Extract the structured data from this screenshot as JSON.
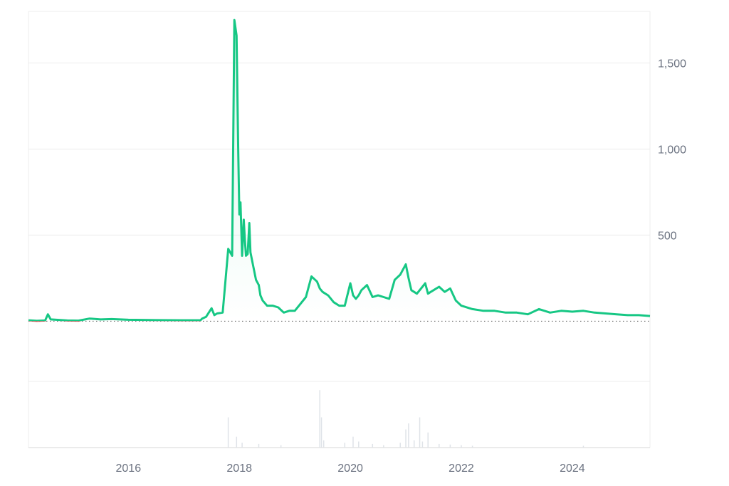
{
  "chart_data": {
    "type": "line",
    "title": "",
    "xlabel": "",
    "ylabel": "",
    "xlim": [
      2014.2,
      2025.4
    ],
    "ylim": [
      -350,
      1800
    ],
    "baseline": 0,
    "y_ticks": [
      500,
      1000,
      1500
    ],
    "y_tick_labels": [
      "500",
      "1,000",
      "1,500"
    ],
    "x_ticks": [
      2016,
      2018,
      2020,
      2022,
      2024
    ],
    "x_tick_labels": [
      "2016",
      "2018",
      "2020",
      "2022",
      "2024"
    ],
    "grid": "horizontal",
    "colors": {
      "up": "#16c784",
      "down": "#ea3943",
      "area": "#16c784",
      "grid": "#ececec",
      "volume": "#dfe3e8"
    },
    "series": [
      {
        "x": [
          2014.2,
          2014.35,
          2014.5,
          2014.55,
          2014.6,
          2014.7,
          2014.9,
          2015.1,
          2015.3,
          2015.5,
          2015.7,
          2016.0,
          2016.5,
          2017.0,
          2017.3,
          2017.33,
          2017.4,
          2017.5,
          2017.55,
          2017.6,
          2017.7,
          2017.8,
          2017.87,
          2017.91,
          2017.95,
          2017.98,
          2018.0,
          2018.02,
          2018.05,
          2018.08,
          2018.1,
          2018.12,
          2018.15,
          2018.18,
          2018.2,
          2018.25,
          2018.3,
          2018.35,
          2018.38,
          2018.42,
          2018.5,
          2018.6,
          2018.7,
          2018.8,
          2018.9,
          2019.0,
          2019.2,
          2019.3,
          2019.4,
          2019.45,
          2019.5,
          2019.6,
          2019.7,
          2019.8,
          2019.9,
          2020.0,
          2020.05,
          2020.1,
          2020.15,
          2020.2,
          2020.3,
          2020.4,
          2020.5,
          2020.6,
          2020.7,
          2020.8,
          2020.9,
          2021.0,
          2021.05,
          2021.1,
          2021.2,
          2021.3,
          2021.35,
          2021.4,
          2021.45,
          2021.5,
          2021.6,
          2021.7,
          2021.8,
          2021.9,
          2022.0,
          2022.2,
          2022.4,
          2022.6,
          2022.8,
          2023.0,
          2023.2,
          2023.4,
          2023.6,
          2023.8,
          2024.0,
          2024.2,
          2024.4,
          2024.6,
          2024.8,
          2025.0,
          2025.2,
          2025.4
        ],
        "values": [
          5,
          2,
          4,
          40,
          10,
          8,
          4,
          3,
          15,
          10,
          12,
          8,
          6,
          5,
          5,
          15,
          25,
          75,
          35,
          45,
          50,
          420,
          380,
          1750,
          1660,
          1000,
          620,
          690,
          380,
          590,
          470,
          380,
          390,
          570,
          400,
          320,
          240,
          210,
          150,
          120,
          90,
          90,
          80,
          50,
          60,
          60,
          140,
          260,
          230,
          190,
          170,
          150,
          110,
          90,
          90,
          220,
          150,
          130,
          150,
          180,
          210,
          140,
          150,
          140,
          130,
          240,
          270,
          330,
          250,
          180,
          160,
          200,
          220,
          160,
          170,
          180,
          200,
          170,
          190,
          120,
          90,
          70,
          60,
          60,
          50,
          50,
          40,
          70,
          50,
          60,
          55,
          60,
          50,
          45,
          40,
          35,
          35,
          30
        ]
      }
    ],
    "volume": {
      "x": [
        2017.8,
        2017.95,
        2018.05,
        2018.35,
        2018.75,
        2019.45,
        2019.48,
        2019.52,
        2019.9,
        2020.05,
        2020.15,
        2020.4,
        2020.6,
        2020.9,
        2021.0,
        2021.05,
        2021.15,
        2021.25,
        2021.3,
        2021.4,
        2021.6,
        2021.8,
        2022.0,
        2022.2,
        2024.2
      ],
      "values": [
        0.5,
        0.18,
        0.08,
        0.06,
        0.04,
        0.95,
        0.5,
        0.12,
        0.08,
        0.18,
        0.1,
        0.06,
        0.04,
        0.08,
        0.3,
        0.4,
        0.12,
        0.5,
        0.1,
        0.25,
        0.06,
        0.05,
        0.04,
        0.03,
        0.03
      ]
    }
  }
}
